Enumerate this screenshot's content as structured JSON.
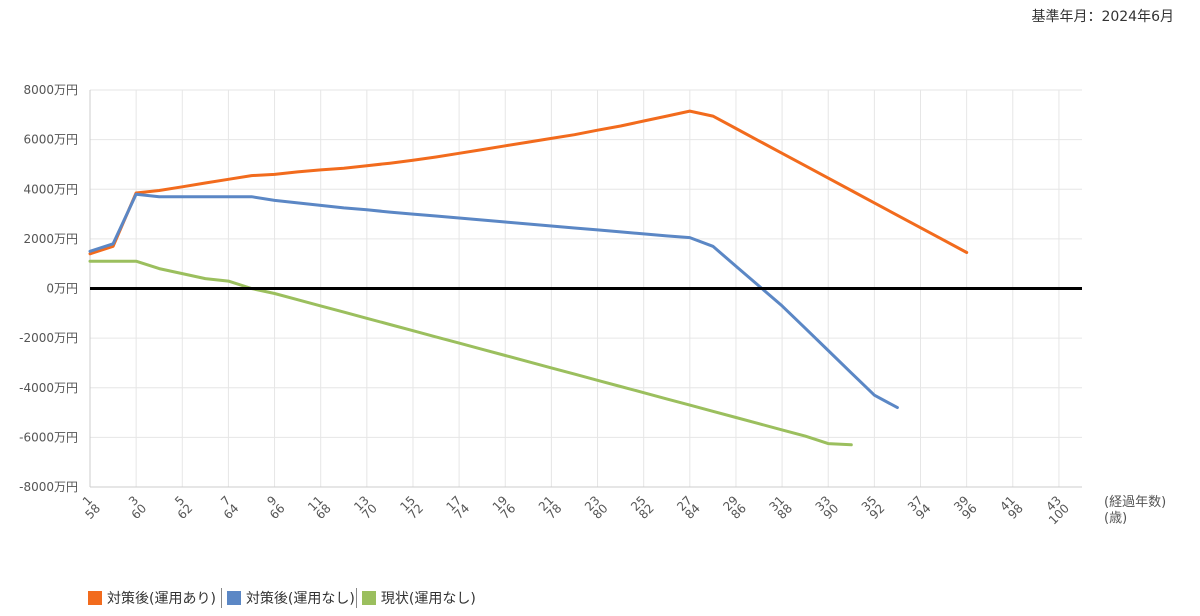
{
  "header": {
    "base_date": "基準年月：2024年6月"
  },
  "legend": [
    {
      "label": "対策後(運用あり)",
      "color": "#f26b1d"
    },
    {
      "label": "対策後(運用なし)",
      "color": "#5b87c5"
    },
    {
      "label": "現状(運用なし)",
      "color": "#9bbf5e"
    }
  ],
  "chart_data": {
    "type": "line",
    "y_tick_labels": [
      "8000万円",
      "6000万円",
      "4000万円",
      "2000万円",
      "0万円",
      "-2000万円",
      "-4000万円",
      "-6000万円",
      "-8000万円"
    ],
    "y_ticks": [
      8000,
      6000,
      4000,
      2000,
      0,
      -2000,
      -4000,
      -6000,
      -8000
    ],
    "ylim": [
      -8000,
      8000
    ],
    "x_elapsed_labels": [
      "1",
      "3",
      "5",
      "7",
      "9",
      "11",
      "13",
      "15",
      "17",
      "19",
      "21",
      "23",
      "25",
      "27",
      "29",
      "31",
      "33",
      "35",
      "37",
      "39",
      "41",
      "43"
    ],
    "x_age_labels": [
      "58",
      "60",
      "62",
      "64",
      "66",
      "68",
      "70",
      "72",
      "74",
      "76",
      "78",
      "80",
      "82",
      "84",
      "86",
      "88",
      "90",
      "92",
      "94",
      "96",
      "98",
      "100"
    ],
    "xlabel_elapsed": "(経過年数)",
    "xlabel_age": "(歳)",
    "x": [
      1,
      2,
      3,
      4,
      5,
      6,
      7,
      8,
      9,
      10,
      11,
      12,
      13,
      14,
      15,
      16,
      17,
      18,
      19,
      20,
      21,
      22,
      23,
      24,
      25,
      26,
      27,
      28,
      29,
      30,
      31,
      32,
      33,
      34,
      35,
      36,
      37,
      38,
      39,
      40,
      41,
      42,
      43,
      44
    ],
    "series": [
      {
        "name": "対策後(運用あり)",
        "color": "#f26b1d",
        "values": [
          1400,
          1700,
          3850,
          3950,
          4100,
          4250,
          4400,
          4550,
          4600,
          4700,
          4780,
          4850,
          4950,
          5050,
          5170,
          5300,
          5450,
          5600,
          5750,
          5900,
          6050,
          6200,
          6380,
          6550,
          6750,
          6950,
          7150,
          6950,
          6450,
          5950,
          5450,
          4950,
          4450,
          3950,
          3450,
          2950,
          2450,
          1950,
          1450,
          null,
          null,
          null,
          null,
          null
        ]
      },
      {
        "name": "対策後(運用なし)",
        "color": "#5b87c5",
        "values": [
          1500,
          1800,
          3800,
          3700,
          3700,
          3700,
          3700,
          3700,
          3550,
          3450,
          3350,
          3250,
          3170,
          3080,
          3000,
          2920,
          2840,
          2760,
          2680,
          2600,
          2520,
          2440,
          2360,
          2280,
          2200,
          2120,
          2050,
          1700,
          900,
          100,
          -700,
          -1600,
          -2500,
          -3400,
          -4300,
          -4800,
          null,
          null,
          null,
          null,
          null,
          null,
          null,
          null
        ]
      },
      {
        "name": "現状(運用なし)",
        "color": "#9bbf5e",
        "values": [
          1100,
          1100,
          1100,
          800,
          600,
          400,
          300,
          0,
          -200,
          -450,
          -700,
          -950,
          -1200,
          -1450,
          -1700,
          -1950,
          -2200,
          -2450,
          -2700,
          -2950,
          -3200,
          -3450,
          -3700,
          -3950,
          -4200,
          -4450,
          -4700,
          -4950,
          -5200,
          -5450,
          -5700,
          -5950,
          -6250,
          -6300,
          null,
          null,
          null,
          null,
          null,
          null,
          null,
          null,
          null,
          null
        ]
      }
    ],
    "zero_line": true,
    "grid": true,
    "legend_position": "bottom-left"
  }
}
